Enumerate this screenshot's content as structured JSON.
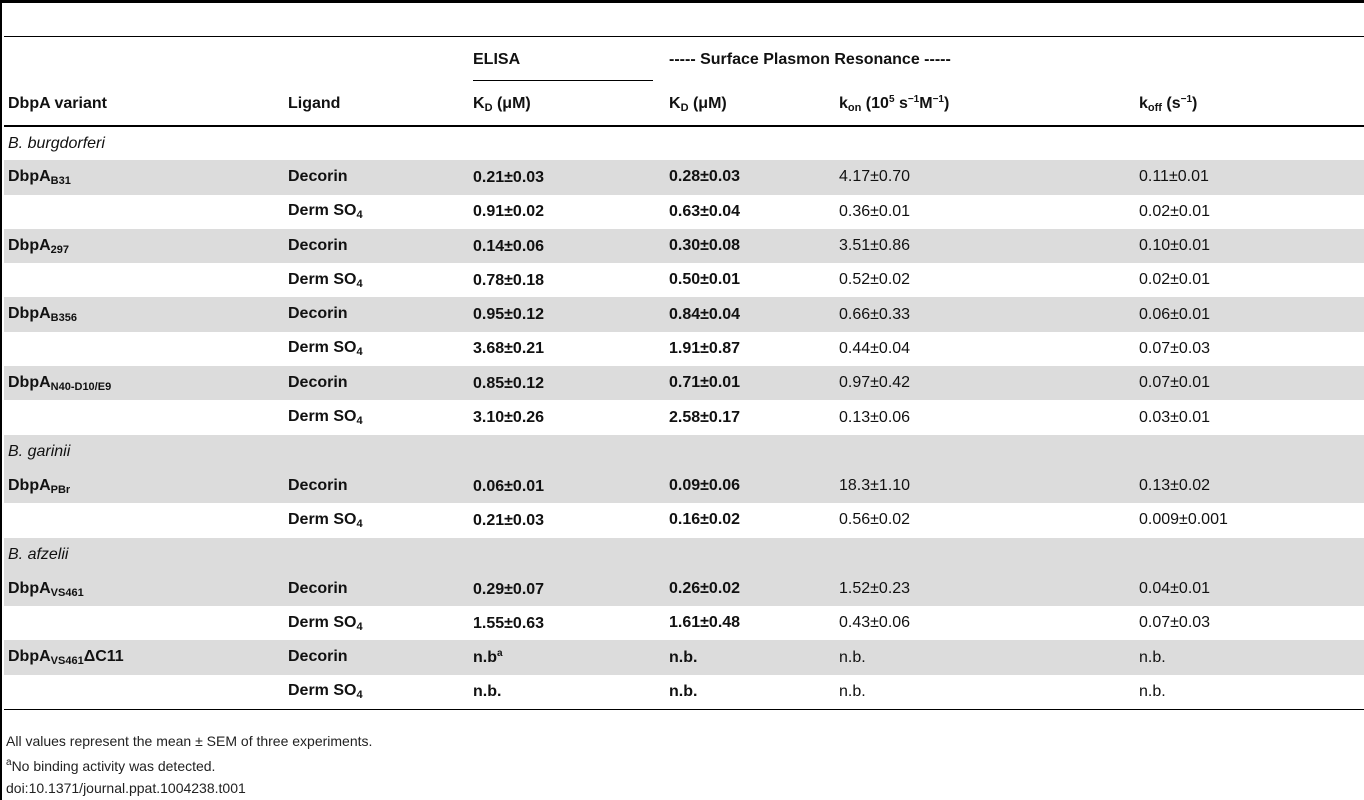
{
  "header": {
    "elisa": "ELISA",
    "spr": "----- Surface Plasmon Resonance -----",
    "variant": "DbpA variant",
    "ligand": "Ligand",
    "kd_elisa_main": "K",
    "kd_elisa_sub": "D",
    "kd_elisa_unit": " (μM)",
    "kd_spr_main": "K",
    "kd_spr_sub": "D",
    "kd_spr_unit": " (μM)",
    "kon_main": "k",
    "kon_sub": "on",
    "kon_unit_a": " (10",
    "kon_exp1": "5",
    "kon_unit_b": " s",
    "kon_exp2": "−1",
    "kon_unit_c": "M",
    "kon_exp3": "−1",
    "kon_unit_d": ")",
    "koff_main": "k",
    "koff_sub": "off",
    "koff_unit_a": " (s",
    "koff_exp": "−1",
    "koff_unit_b": ")"
  },
  "rows": [
    {
      "species": "B. burgdorferi"
    },
    {
      "variant": "DbpA",
      "vsub": "B31",
      "ligand": "Decorin",
      "lsub": "",
      "elisa": "0.21±0.03",
      "elisa_sup": "",
      "kd": "0.28±0.03",
      "kon": "4.17±0.70",
      "koff": "0.11±0.01"
    },
    {
      "variant": "",
      "vsub": "",
      "ligand": "Derm SO",
      "lsub": "4",
      "elisa": "0.91±0.02",
      "elisa_sup": "",
      "kd": "0.63±0.04",
      "kon": "0.36±0.01",
      "koff": "0.02±0.01"
    },
    {
      "variant": "DbpA",
      "vsub": "297",
      "ligand": "Decorin",
      "lsub": "",
      "elisa": "0.14±0.06",
      "elisa_sup": "",
      "kd": "0.30±0.08",
      "kon": "3.51±0.86",
      "koff": "0.10±0.01"
    },
    {
      "variant": "",
      "vsub": "",
      "ligand": "Derm SO",
      "lsub": "4",
      "elisa": "0.78±0.18",
      "elisa_sup": "",
      "kd": "0.50±0.01",
      "kon": "0.52±0.02",
      "koff": "0.02±0.01"
    },
    {
      "variant": "DbpA",
      "vsub": "B356",
      "ligand": "Decorin",
      "lsub": "",
      "elisa": "0.95±0.12",
      "elisa_sup": "",
      "kd": "0.84±0.04",
      "kon": "0.66±0.33",
      "koff": "0.06±0.01"
    },
    {
      "variant": "",
      "vsub": "",
      "ligand": "Derm SO",
      "lsub": "4",
      "elisa": "3.68±0.21",
      "elisa_sup": "",
      "kd": "1.91±0.87",
      "kon": "0.44±0.04",
      "koff": "0.07±0.03"
    },
    {
      "variant": "DbpA",
      "vsub": "N40-D10/E9",
      "ligand": "Decorin",
      "lsub": "",
      "elisa": "0.85±0.12",
      "elisa_sup": "",
      "kd": "0.71±0.01",
      "kon": "0.97±0.42",
      "koff": "0.07±0.01"
    },
    {
      "variant": "",
      "vsub": "",
      "ligand": "Derm SO",
      "lsub": "4",
      "elisa": "3.10±0.26",
      "elisa_sup": "",
      "kd": "2.58±0.17",
      "kon": "0.13±0.06",
      "koff": "0.03±0.01"
    },
    {
      "species": "B. garinii"
    },
    {
      "variant": "DbpA",
      "vsub": "PBr",
      "ligand": "Decorin",
      "lsub": "",
      "elisa": "0.06±0.01",
      "elisa_sup": "",
      "kd": "0.09±0.06",
      "kon": "18.3±1.10",
      "koff": "0.13±0.02"
    },
    {
      "variant": "",
      "vsub": "",
      "ligand": "Derm SO",
      "lsub": "4",
      "elisa": "0.21±0.03",
      "elisa_sup": "",
      "kd": "0.16±0.02",
      "kon": "0.56±0.02",
      "koff": "0.009±0.001"
    },
    {
      "species": "B. afzelii"
    },
    {
      "variant": "DbpA",
      "vsub": "VS461",
      "ligand": "Decorin",
      "lsub": "",
      "elisa": "0.29±0.07",
      "elisa_sup": "",
      "kd": "0.26±0.02",
      "kon": "1.52±0.23",
      "koff": "0.04±0.01"
    },
    {
      "variant": "",
      "vsub": "",
      "ligand": "Derm SO",
      "lsub": "4",
      "elisa": "1.55±0.63",
      "elisa_sup": "",
      "kd": "1.61±0.48",
      "kon": "0.43±0.06",
      "koff": "0.07±0.03"
    },
    {
      "variant": "DbpA",
      "vsub": "VS461",
      "vsuffix": "ΔC11",
      "ligand": "Decorin",
      "lsub": "",
      "elisa": "n.b",
      "elisa_sup": "a",
      "kd": "n.b.",
      "kon": "n.b.",
      "koff": "n.b."
    },
    {
      "variant": "",
      "vsub": "",
      "ligand": "Derm SO",
      "lsub": "4",
      "elisa": "n.b.",
      "elisa_sup": "",
      "kd": "n.b.",
      "kon": "n.b.",
      "koff": "n.b."
    }
  ],
  "notes": {
    "line1": "All values represent the mean ± SEM of three experiments.",
    "line2_sup": "a",
    "line2": "No binding activity was detected.",
    "line3": "doi:10.1371/journal.ppat.1004238.t001"
  }
}
